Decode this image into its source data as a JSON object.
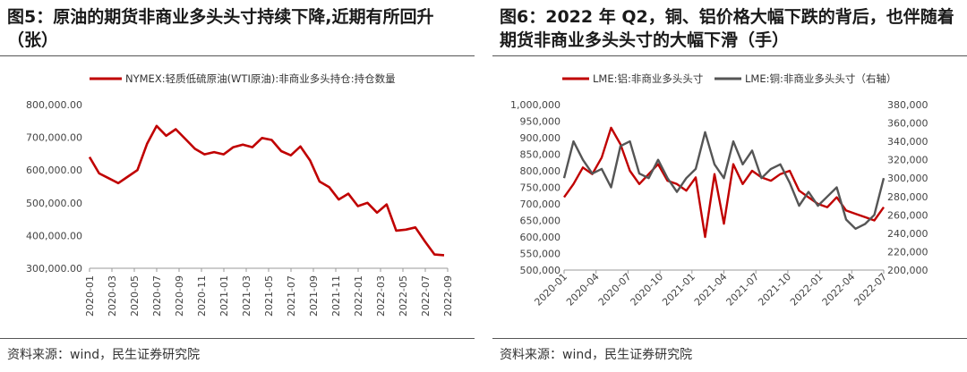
{
  "chart_data": [
    {
      "type": "line",
      "title": "图5：原油的期货非商业多头头寸持续下降,近期有所回升（张）",
      "source": "资料来源：wind，民生证券研究院",
      "x_labels": [
        "2020-01",
        "2020-03",
        "2020-05",
        "2020-07",
        "2020-09",
        "2020-11",
        "2021-01",
        "2021-03",
        "2021-05",
        "2021-07",
        "2021-09",
        "2021-11",
        "2022-01",
        "2022-03",
        "2022-05",
        "2022-07",
        "2022-09"
      ],
      "y_ticks": [
        "800,000.00",
        "700,000.00",
        "600,000.00",
        "500,000.00",
        "400,000.00",
        "300,000.00"
      ],
      "ylim": [
        300000,
        800000
      ],
      "series": [
        {
          "name": "NYMEX:轻质低硫原油(WTI原油):非商业多头持仓:持仓数量",
          "color": "#c00000",
          "values": [
            640000,
            590000,
            575000,
            560000,
            580000,
            600000,
            680000,
            735000,
            705000,
            725000,
            695000,
            665000,
            648000,
            655000,
            648000,
            670000,
            678000,
            670000,
            698000,
            692000,
            658000,
            645000,
            672000,
            630000,
            565000,
            548000,
            510000,
            528000,
            490000,
            500000,
            470000,
            495000,
            415000,
            418000,
            425000,
            382000,
            342000,
            340000
          ]
        }
      ]
    },
    {
      "type": "line",
      "title": "图6：2022 年 Q2，铜、铝价格大幅下跌的背后，也伴随着期货非商业多头头寸的大幅下滑（手）",
      "source": "资料来源：wind，民生证券研究院",
      "x_labels": [
        "2020-01",
        "2020-04",
        "2020-07",
        "2020-10",
        "2021-01",
        "2021-04",
        "2021-07",
        "2021-10",
        "2022-01",
        "2022-04",
        "2022-07"
      ],
      "y_left_ticks": [
        "1,000,000",
        "950,000",
        "900,000",
        "850,000",
        "800,000",
        "750,000",
        "700,000",
        "650,000",
        "600,000",
        "550,000",
        "500,000"
      ],
      "y_right_ticks": [
        "380,000",
        "360,000",
        "340,000",
        "320,000",
        "300,000",
        "280,000",
        "260,000",
        "240,000",
        "220,000",
        "200,000"
      ],
      "ylim_left": [
        500000,
        1000000
      ],
      "ylim_right": [
        200000,
        380000
      ],
      "series": [
        {
          "name": "LME:铝:非商业多头头寸",
          "axis": "left",
          "color": "#c00000",
          "values": [
            720000,
            760000,
            810000,
            790000,
            840000,
            930000,
            880000,
            800000,
            760000,
            790000,
            820000,
            770000,
            760000,
            740000,
            780000,
            600000,
            790000,
            640000,
            820000,
            760000,
            800000,
            780000,
            770000,
            790000,
            800000,
            740000,
            720000,
            700000,
            690000,
            720000,
            680000,
            670000,
            660000,
            650000,
            690000
          ]
        },
        {
          "name": "LME:铜:非商业多头头寸（右轴）",
          "axis": "right",
          "color": "#555555",
          "values": [
            300000,
            340000,
            320000,
            305000,
            310000,
            290000,
            335000,
            340000,
            305000,
            300000,
            320000,
            300000,
            285000,
            300000,
            310000,
            350000,
            315000,
            300000,
            340000,
            315000,
            330000,
            300000,
            310000,
            315000,
            295000,
            270000,
            285000,
            270000,
            280000,
            290000,
            255000,
            245000,
            250000,
            260000,
            300000
          ]
        }
      ]
    }
  ]
}
